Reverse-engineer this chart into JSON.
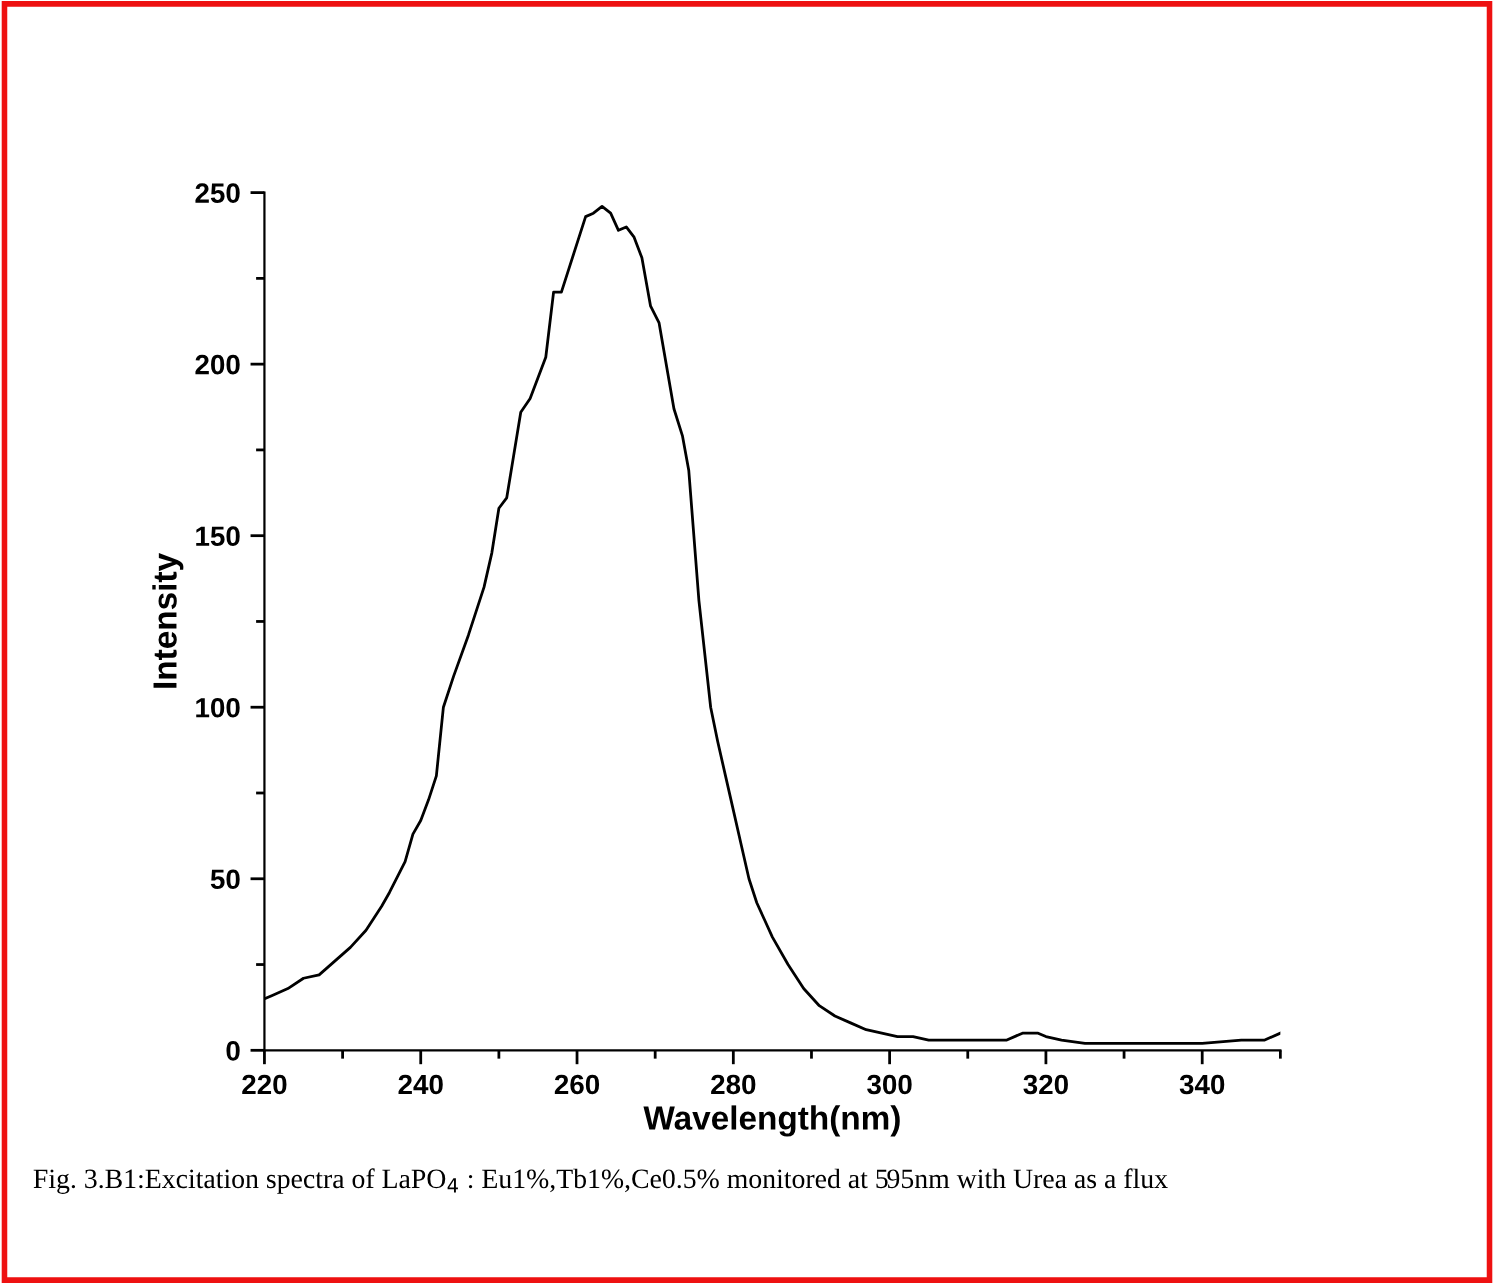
{
  "chart_data": {
    "type": "line",
    "xlabel": "Wavelength(nm)",
    "ylabel": "Intensity",
    "x": [
      220,
      221,
      223,
      225,
      227,
      229,
      231,
      233,
      235,
      236,
      238,
      239,
      240,
      241,
      242,
      242.9,
      244.2,
      246.1,
      248.1,
      249.1,
      250.0,
      251.0,
      252.8,
      254.0,
      256.0,
      257.0,
      258.0,
      261.1,
      262.1,
      263.2,
      264.3,
      265.3,
      266.3,
      267.3,
      268.3,
      269.4,
      270.5,
      272.4,
      273.5,
      274.3,
      275.6,
      277.1,
      278,
      279,
      280,
      281,
      282,
      283,
      285,
      287,
      289,
      291,
      293,
      295,
      297,
      299,
      301,
      303,
      305,
      307,
      309,
      311,
      313,
      315,
      317,
      318,
      319,
      320,
      322,
      325,
      330,
      335,
      340,
      345,
      348,
      350
    ],
    "series": [
      {
        "color": "#000000",
        "values": [
          15,
          16,
          18,
          21,
          22,
          26,
          30,
          35,
          42,
          46,
          55,
          63,
          67,
          73,
          80,
          100,
          109,
          121,
          135,
          145,
          158,
          161,
          186,
          190,
          202,
          221,
          221,
          243,
          244,
          246,
          244,
          239,
          240,
          237,
          231,
          217,
          212,
          187,
          179,
          169,
          131,
          100,
          90,
          80,
          70,
          60,
          50,
          43,
          33,
          25,
          18,
          13,
          10,
          8,
          6,
          5,
          4,
          4,
          3,
          3,
          3,
          3,
          3,
          3,
          5,
          5,
          5,
          4,
          3,
          2,
          2,
          2,
          2,
          3,
          3,
          5
        ]
      }
    ],
    "xlim": [
      220,
      350
    ],
    "ylim": [
      0,
      250
    ],
    "xticks": [
      220,
      240,
      260,
      280,
      300,
      320,
      340
    ],
    "yticks": [
      0,
      50,
      100,
      150,
      200,
      250
    ],
    "grid": false,
    "legend": false,
    "marker": "none",
    "line_style": "solid",
    "annotations": [
      "Fig. 3.B1:Excitation spectra of LaPO$_{4}$ : Eu1%,Tb1%,Ce0.5% monitored at 595nm with Urea as a flux"
    ]
  }
}
